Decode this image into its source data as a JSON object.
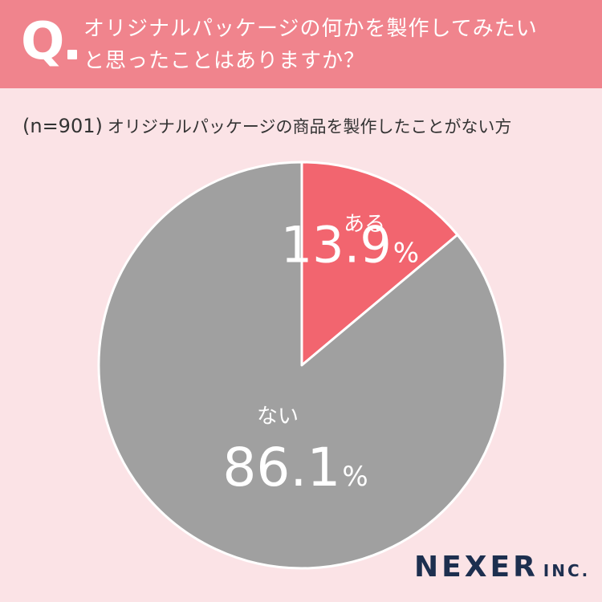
{
  "question": {
    "mark": "Q",
    "line1": "オリジナルパッケージの何かを製作してみたい",
    "line2": "と思ったことはありますか？"
  },
  "sample": {
    "n_label": "(n=901)",
    "description": "オリジナルパッケージの商品を製作したことがない方"
  },
  "chart_data": {
    "type": "pie",
    "categories": [
      "ある",
      "ない"
    ],
    "values": [
      13.9,
      86.1
    ],
    "value_labels": [
      "13.9",
      "86.1"
    ],
    "unit": "%",
    "colors": [
      "#f2656f",
      "#a0a0a0"
    ],
    "start_angle_deg": 0,
    "direction": "clockwise"
  },
  "logo": {
    "main": "NEXER",
    "suffix": "INC."
  },
  "colors": {
    "background": "#fbe3e6",
    "header": "#f0848d",
    "logo": "#1d2f4f"
  }
}
